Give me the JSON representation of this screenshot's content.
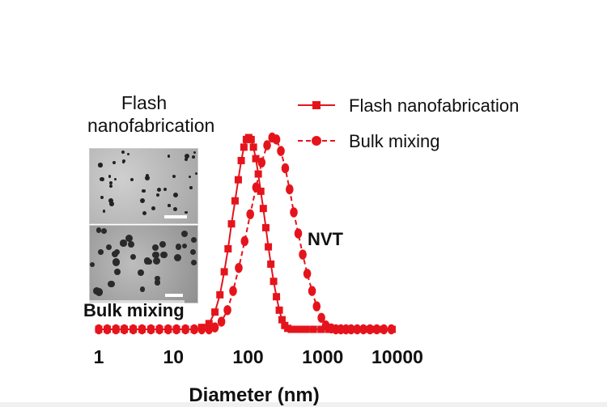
{
  "chart_data": {
    "type": "line",
    "xscale": "log",
    "xlim": [
      1,
      10000
    ],
    "ylim": [
      0,
      1
    ],
    "xlabel": "Diameter (nm)",
    "ylabel": "",
    "title": "",
    "xticks": [
      "1",
      "10",
      "100",
      "1000",
      "10000"
    ],
    "grid": false,
    "legend_position": "top-right",
    "series": [
      {
        "name": "Flash nanofabrication",
        "marker": "square",
        "line": "solid",
        "color": "#e5141c",
        "x": [
          1,
          1.3,
          1.7,
          2.2,
          2.9,
          3.8,
          5,
          6.5,
          8.5,
          11,
          14.5,
          19,
          24,
          30,
          36,
          42,
          48,
          54,
          60,
          67,
          74,
          81,
          88,
          95,
          102,
          110,
          118,
          127,
          137,
          148,
          160,
          173,
          187,
          202,
          220,
          240,
          262,
          285,
          310,
          340,
          380,
          430,
          500,
          600,
          750,
          950,
          1200,
          1600,
          2100,
          2800,
          3700,
          4900,
          6500,
          8500
        ],
        "y": [
          0,
          0,
          0,
          0,
          0,
          0,
          0,
          0,
          0,
          0,
          0,
          0,
          0.01,
          0.03,
          0.09,
          0.18,
          0.3,
          0.42,
          0.55,
          0.67,
          0.78,
          0.88,
          0.95,
          0.99,
          1.0,
          0.99,
          0.95,
          0.89,
          0.81,
          0.72,
          0.63,
          0.53,
          0.43,
          0.34,
          0.25,
          0.17,
          0.1,
          0.05,
          0.02,
          0.005,
          0,
          0,
          0,
          0,
          0,
          0,
          0,
          0,
          0,
          0,
          0,
          0,
          0,
          0
        ]
      },
      {
        "name": "Bulk mixing",
        "marker": "circle",
        "line": "dashed",
        "color": "#e5141c",
        "x": [
          1,
          1.3,
          1.7,
          2.2,
          2.9,
          3.8,
          5,
          6.5,
          8.5,
          11,
          14.5,
          19,
          24,
          30,
          36,
          44,
          53,
          63,
          75,
          90,
          107,
          128,
          152,
          180,
          210,
          240,
          275,
          315,
          360,
          410,
          470,
          540,
          620,
          720,
          830,
          960,
          1100,
          1300,
          1500,
          1750,
          2050,
          2400,
          2900,
          3500,
          4300,
          5300,
          6600,
          8300
        ],
        "y": [
          0,
          0,
          0,
          0,
          0,
          0,
          0,
          0,
          0,
          0,
          0,
          0,
          0,
          0,
          0.01,
          0.04,
          0.1,
          0.2,
          0.32,
          0.46,
          0.6,
          0.74,
          0.87,
          0.96,
          1.0,
          0.99,
          0.93,
          0.84,
          0.73,
          0.61,
          0.5,
          0.39,
          0.29,
          0.2,
          0.12,
          0.06,
          0.02,
          0.005,
          0,
          0,
          0,
          0,
          0,
          0,
          0,
          0,
          0,
          0
        ]
      }
    ],
    "annotations": [
      "NVT"
    ]
  },
  "inset": {
    "title_line1": "Flash",
    "title_line2": "nanofabrication",
    "caption": "Bulk mixing"
  }
}
